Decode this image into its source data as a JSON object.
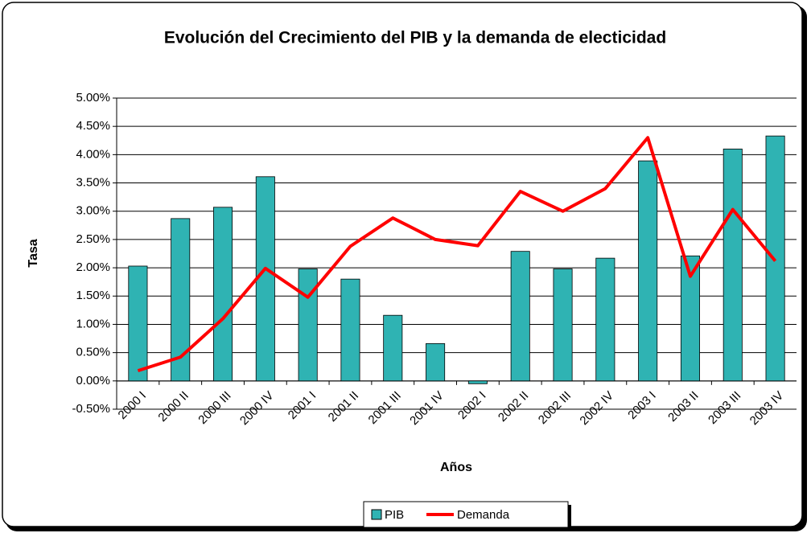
{
  "chart_data": {
    "type": "bar",
    "title": "Evolución del Crecimiento del PIB y la demanda de electicidad",
    "x_label": "Años",
    "y_label": "Tasa",
    "categories": [
      "2000 I",
      "2000 II",
      "2000 III",
      "2000 IV",
      "2001 I",
      "2001 II",
      "2001 III",
      "2001 IV",
      "2002 I",
      "2002 II",
      "2002 III",
      "2002 IV",
      "2003 I",
      "2003 II",
      "2003 III",
      "2003 IV"
    ],
    "series": [
      {
        "name": "PIB",
        "type": "bar",
        "color": "#2fb3b3",
        "values": [
          2.03,
          2.87,
          3.07,
          3.61,
          1.98,
          1.8,
          1.16,
          0.66,
          -0.05,
          2.29,
          1.98,
          2.17,
          3.89,
          2.21,
          4.1,
          4.33
        ]
      },
      {
        "name": "Demanda",
        "type": "line",
        "color": "#ff0000",
        "values": [
          0.18,
          0.42,
          1.1,
          1.99,
          1.48,
          2.38,
          2.88,
          2.5,
          2.39,
          3.35,
          3.0,
          3.4,
          4.3,
          1.85,
          3.03,
          2.12
        ]
      }
    ],
    "ylim": [
      -0.5,
      5
    ],
    "yticks": [
      {
        "value": -0.5,
        "label": "-0.50%"
      },
      {
        "value": 0,
        "label": "0.00%"
      },
      {
        "value": 0.5,
        "label": "0.50%"
      },
      {
        "value": 1,
        "label": "1.00%"
      },
      {
        "value": 1.5,
        "label": "1.50%"
      },
      {
        "value": 2,
        "label": "2.00%"
      },
      {
        "value": 2.5,
        "label": "2.50%"
      },
      {
        "value": 3,
        "label": "3.00%"
      },
      {
        "value": 3.5,
        "label": "3.50%"
      },
      {
        "value": 4,
        "label": "4.00%"
      },
      {
        "value": 4.5,
        "label": "4.50%"
      },
      {
        "value": 5,
        "label": "5.00%"
      }
    ],
    "grid": true,
    "legend": "bottom"
  }
}
